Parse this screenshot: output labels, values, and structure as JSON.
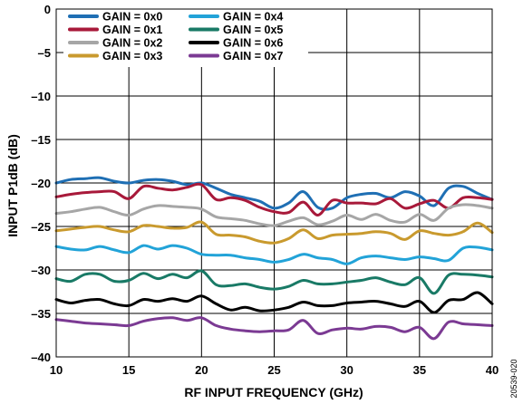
{
  "chart_data": {
    "type": "line",
    "xlabel": "RF INPUT FREQUENCY (GHz)",
    "ylabel": "INPUT P1dB (dB)",
    "xlim": [
      10,
      40
    ],
    "ylim": [
      -40,
      0
    ],
    "x_ticks": [
      10,
      15,
      20,
      25,
      30,
      35,
      40
    ],
    "y_ticks": [
      0,
      -5,
      -10,
      -15,
      -20,
      -25,
      -30,
      -35,
      -40
    ],
    "y_tick_labels": [
      "0",
      "–5",
      "–10",
      "–15",
      "–20",
      "–25",
      "–30",
      "–35",
      "–40"
    ],
    "grid": true,
    "legend_position": "top-left",
    "figure_id": "20539-020",
    "x": [
      10,
      11,
      12,
      13,
      14,
      15,
      16,
      17,
      18,
      19,
      20,
      21,
      22,
      23,
      24,
      25,
      26,
      27,
      28,
      29,
      30,
      31,
      32,
      33,
      34,
      35,
      36,
      37,
      38,
      39,
      40
    ],
    "series": [
      {
        "name": "GAIN = 0x0",
        "color": "#1f6fb4",
        "values": [
          -20.0,
          -19.6,
          -19.5,
          -19.4,
          -19.8,
          -20.0,
          -19.7,
          -19.6,
          -19.8,
          -20.2,
          -20.0,
          -20.6,
          -21.3,
          -21.7,
          -22.1,
          -22.9,
          -22.3,
          -21.0,
          -22.8,
          -22.9,
          -21.7,
          -21.3,
          -21.2,
          -21.7,
          -21.0,
          -21.5,
          -22.6,
          -20.6,
          -20.4,
          -21.2,
          -21.9
        ]
      },
      {
        "name": "GAIN = 0x1",
        "color": "#a8193a",
        "values": [
          -21.6,
          -21.3,
          -21.1,
          -21.0,
          -21.0,
          -21.8,
          -20.4,
          -20.6,
          -20.8,
          -20.5,
          -20.2,
          -21.9,
          -21.7,
          -22.0,
          -22.8,
          -23.3,
          -23.4,
          -22.2,
          -23.7,
          -22.0,
          -22.3,
          -22.3,
          -22.4,
          -21.8,
          -22.9,
          -22.4,
          -22.0,
          -22.9,
          -21.7,
          -21.7,
          -21.9
        ]
      },
      {
        "name": "GAIN = 0x2",
        "color": "#a6a6a6",
        "values": [
          -23.5,
          -23.3,
          -23.0,
          -22.8,
          -23.3,
          -23.7,
          -23.0,
          -22.6,
          -22.7,
          -22.8,
          -23.0,
          -23.9,
          -24.1,
          -24.3,
          -24.7,
          -24.9,
          -24.4,
          -24.0,
          -24.8,
          -24.4,
          -23.7,
          -24.2,
          -23.6,
          -24.3,
          -24.5,
          -23.6,
          -24.3,
          -22.9,
          -22.5,
          -22.6,
          -22.9
        ]
      },
      {
        "name": "GAIN = 0x3",
        "color": "#c99a2e",
        "values": [
          -25.5,
          -25.3,
          -25.1,
          -25.0,
          -25.4,
          -25.6,
          -24.9,
          -25.0,
          -25.2,
          -25.1,
          -24.5,
          -25.9,
          -26.0,
          -26.2,
          -26.7,
          -26.9,
          -26.4,
          -25.4,
          -26.4,
          -26.0,
          -25.9,
          -25.8,
          -25.6,
          -25.8,
          -26.5,
          -25.5,
          -25.8,
          -26.0,
          -25.6,
          -24.6,
          -25.7
        ]
      },
      {
        "name": "GAIN = 0x4",
        "color": "#22a3d8",
        "values": [
          -27.3,
          -27.6,
          -27.7,
          -27.3,
          -27.7,
          -28.0,
          -27.2,
          -27.6,
          -27.2,
          -27.5,
          -28.2,
          -28.3,
          -28.3,
          -28.6,
          -28.8,
          -29.1,
          -28.8,
          -28.2,
          -28.6,
          -28.8,
          -29.3,
          -28.6,
          -28.4,
          -28.6,
          -28.8,
          -28.5,
          -28.7,
          -28.9,
          -27.5,
          -27.4,
          -27.7
        ]
      },
      {
        "name": "GAIN = 0x5",
        "color": "#197a66",
        "values": [
          -31.0,
          -31.3,
          -30.5,
          -30.5,
          -31.3,
          -31.2,
          -30.4,
          -31.0,
          -30.5,
          -30.9,
          -30.1,
          -31.7,
          -31.8,
          -31.6,
          -32.0,
          -32.2,
          -31.9,
          -31.2,
          -31.6,
          -31.6,
          -31.4,
          -31.2,
          -30.9,
          -31.4,
          -31.7,
          -30.9,
          -32.7,
          -30.6,
          -30.5,
          -30.6,
          -30.8
        ]
      },
      {
        "name": "GAIN = 0x6",
        "color": "#000000",
        "values": [
          -33.4,
          -33.8,
          -33.5,
          -33.4,
          -33.9,
          -34.1,
          -33.4,
          -33.6,
          -33.3,
          -33.6,
          -33.0,
          -33.9,
          -34.6,
          -34.3,
          -34.7,
          -34.6,
          -34.3,
          -33.7,
          -34.1,
          -34.1,
          -33.8,
          -33.7,
          -33.6,
          -33.9,
          -34.2,
          -33.6,
          -34.9,
          -33.5,
          -33.4,
          -32.6,
          -33.9
        ]
      },
      {
        "name": "GAIN = 0x7",
        "color": "#7b3a93",
        "values": [
          -35.7,
          -35.9,
          -36.1,
          -36.2,
          -36.3,
          -36.4,
          -35.9,
          -35.6,
          -35.5,
          -35.8,
          -35.5,
          -36.4,
          -36.8,
          -37.0,
          -37.1,
          -37.0,
          -36.9,
          -35.8,
          -37.3,
          -36.9,
          -36.7,
          -36.8,
          -36.5,
          -36.6,
          -37.1,
          -36.6,
          -37.9,
          -36.0,
          -36.2,
          -36.3,
          -36.4
        ]
      }
    ]
  }
}
